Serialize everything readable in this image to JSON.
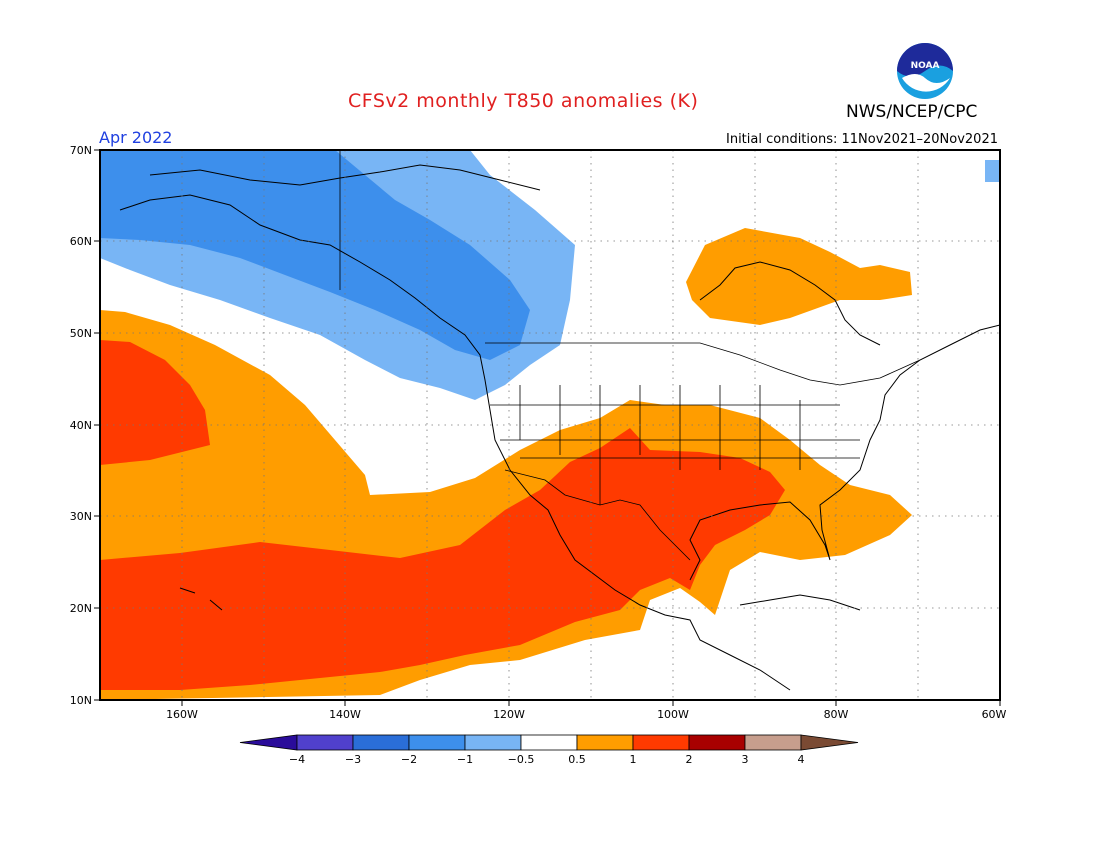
{
  "header": {
    "title": "CFSv2 monthly T850 anomalies (K)",
    "agency": "NWS/NCEP/CPC",
    "logo_text": "NOAA",
    "period": "Apr 2022",
    "initial_conditions": "Initial conditions: 11Nov2021–20Nov2021"
  },
  "map": {
    "lon_range": [
      -170,
      -60
    ],
    "lat_range": [
      10,
      70
    ],
    "lat_ticks": [
      "10N",
      "20N",
      "30N",
      "40N",
      "50N",
      "60N",
      "70N"
    ],
    "lon_ticks": [
      "160W",
      "140W",
      "120W",
      "100W",
      "80W",
      "60W"
    ],
    "grid": "dotted"
  },
  "colorbar": {
    "colors": [
      "#2a0c9a",
      "#5040cc",
      "#2a6ed8",
      "#3d8fec",
      "#78b5f5",
      "#ffffff",
      "#ff9d00",
      "#ff3a00",
      "#a80000",
      "#c79e8d",
      "#7a4a33"
    ],
    "labels": [
      "−4",
      "−3",
      "−2",
      "−1",
      "−0.5",
      "0.5",
      "1",
      "2",
      "3",
      "4"
    ]
  },
  "anomaly_fields": [
    {
      "name": "blue-minus1-to-minus2",
      "color": "#3d8fec"
    },
    {
      "name": "lightblue-minus05-to-minus1",
      "color": "#78b5f5"
    },
    {
      "name": "orange-05-to-1",
      "color": "#ff9d00"
    },
    {
      "name": "red-1-to-2",
      "color": "#ff3a00"
    }
  ]
}
